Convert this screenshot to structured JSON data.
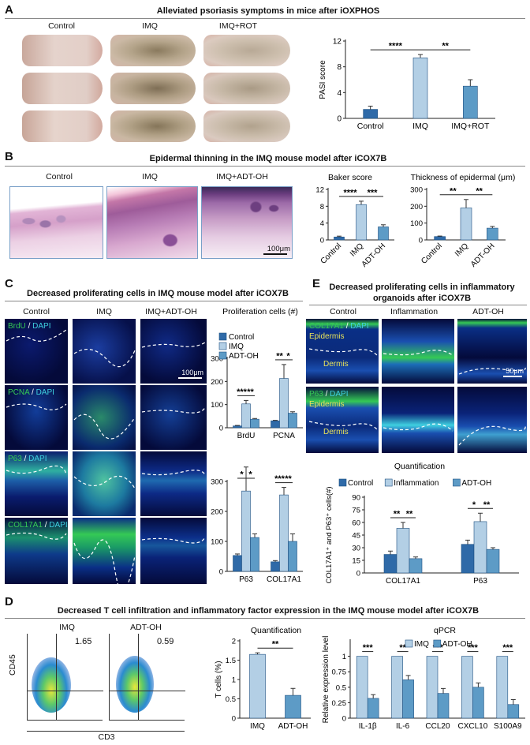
{
  "panelA": {
    "letter": "A",
    "title": "Alleviated psoriasis symptoms in mice after iOXPHOS",
    "groups": [
      "Control",
      "IMQ",
      "IMQ+ROT"
    ]
  },
  "panelB": {
    "letter": "B",
    "title": "Epidermal thinning in the IMQ mouse model after iCOX7B",
    "groups": [
      "Control",
      "IMQ",
      "IMQ+ADT-OH"
    ],
    "scale_bar": "100μm"
  },
  "panelC": {
    "letter": "C",
    "title": "Decreased proliferating cells in IMQ mouse model after iCOX7B",
    "groups": [
      "Control",
      "IMQ",
      "IMQ+ADT-OH"
    ],
    "stain_rows": [
      {
        "marker": "BrdU",
        "sep": " / ",
        "dapi": "DAPI"
      },
      {
        "marker": "PCNA",
        "sep": " / ",
        "dapi": "DAPI"
      },
      {
        "marker": "P63",
        "sep": " / ",
        "dapi": "DAPI"
      },
      {
        "marker": "COL17A1",
        "sep": " / ",
        "dapi": "DAPI"
      }
    ],
    "scale_bar": "100μm"
  },
  "panelD": {
    "letter": "D",
    "title": "Decreased T cell infiltration and inflammatory factor expression in the IMQ mouse model after iCOX7B",
    "flow_groups": [
      "IMQ",
      "ADT-OH"
    ],
    "flow_values": [
      "1.65",
      "0.59"
    ],
    "flow_ylabel": "CD45",
    "flow_xlabel": "CD3"
  },
  "panelE": {
    "letter": "E",
    "title_line1": "Decreased proliferating cells in inflammatory",
    "title_line2": "organoids after iCOX7B",
    "groups": [
      "Control",
      "Inflammation",
      "ADT-OH"
    ],
    "stain_rows": [
      {
        "marker": "COL17A1",
        "sep": " / ",
        "dapi": "DAPI"
      },
      {
        "marker": "P63",
        "sep": " / ",
        "dapi": "DAPI"
      }
    ],
    "epidermis": "Epidermis",
    "dermis": "Dermis",
    "scale_bar": "50μm"
  },
  "colors": {
    "dark": "#2f6aa8",
    "light": "#b3cfe5",
    "mid": "#5d9bc6",
    "green": "#35c955",
    "cyan": "#3fd0e0"
  },
  "chart_data": [
    {
      "id": "pasi",
      "type": "bar",
      "categories": [
        "Control",
        "IMQ",
        "IMQ+ROT"
      ],
      "values": [
        1.4,
        9.4,
        5.0
      ],
      "errors": [
        0.5,
        0.5,
        1.0
      ],
      "ylabel": "PASI score",
      "ylim": [
        0,
        12
      ],
      "yticks": [
        0,
        4,
        8,
        12
      ],
      "colors": [
        "#2f6aa8",
        "#b3cfe5",
        "#5d9bc6"
      ],
      "significance": [
        {
          "from": 0,
          "to": 1,
          "label": "****"
        },
        {
          "from": 1,
          "to": 2,
          "label": "**"
        }
      ]
    },
    {
      "id": "baker",
      "type": "bar",
      "title": "Baker score",
      "categories": [
        "Control",
        "IMQ",
        "ADT-OH"
      ],
      "values": [
        0.7,
        8.4,
        3.1
      ],
      "errors": [
        0.2,
        0.8,
        0.5
      ],
      "ylim": [
        0,
        12
      ],
      "yticks": [
        0,
        4,
        8,
        12
      ],
      "colors": [
        "#2f6aa8",
        "#b3cfe5",
        "#5d9bc6"
      ],
      "significance": [
        {
          "from": 0,
          "to": 1,
          "label": "****"
        },
        {
          "from": 1,
          "to": 2,
          "label": "***"
        }
      ]
    },
    {
      "id": "thickness",
      "type": "bar",
      "title": "Thickness of epidermal (μm)",
      "categories": [
        "Control",
        "IMQ",
        "ADT-OH"
      ],
      "values": [
        20,
        190,
        70
      ],
      "errors": [
        3,
        50,
        10
      ],
      "ylim": [
        0,
        300
      ],
      "yticks": [
        0,
        100,
        200,
        300
      ],
      "colors": [
        "#2f6aa8",
        "#b3cfe5",
        "#5d9bc6"
      ],
      "significance": [
        {
          "from": 0,
          "to": 1,
          "label": "**"
        },
        {
          "from": 1,
          "to": 2,
          "label": "**"
        }
      ]
    },
    {
      "id": "prolif",
      "type": "bar",
      "title": "Proliferation cells (#)",
      "categories": [
        "BrdU",
        "PCNA"
      ],
      "series": [
        {
          "name": "Control",
          "values": [
            8,
            30
          ],
          "errors": [
            2,
            2
          ]
        },
        {
          "name": "IMQ",
          "values": [
            103,
            213
          ],
          "errors": [
            15,
            60
          ]
        },
        {
          "name": "ADT-OH",
          "values": [
            37,
            63
          ],
          "errors": [
            3,
            6
          ]
        }
      ],
      "ylim": [
        0,
        300
      ],
      "yticks": [
        0,
        100,
        200,
        300
      ],
      "colors": [
        "#2f6aa8",
        "#b3cfe5",
        "#5d9bc6"
      ],
      "significance": [
        {
          "cat": 0,
          "from": 0,
          "to": 1,
          "label": "***"
        },
        {
          "cat": 0,
          "from": 1,
          "to": 2,
          "label": "**"
        },
        {
          "cat": 1,
          "from": 0,
          "to": 1,
          "label": "**"
        },
        {
          "cat": 1,
          "from": 1,
          "to": 2,
          "label": "*"
        }
      ]
    },
    {
      "id": "p63col",
      "type": "bar",
      "categories": [
        "P63",
        "COL17A1"
      ],
      "series": [
        {
          "name": "Control",
          "values": [
            53,
            32
          ],
          "errors": [
            5,
            4
          ]
        },
        {
          "name": "IMQ",
          "values": [
            268,
            255
          ],
          "errors": [
            80,
            25
          ]
        },
        {
          "name": "ADT-OH",
          "values": [
            113,
            100
          ],
          "errors": [
            12,
            25
          ]
        }
      ],
      "ylim": [
        0,
        300
      ],
      "yticks": [
        0,
        100,
        200,
        300
      ],
      "colors": [
        "#2f6aa8",
        "#b3cfe5",
        "#5d9bc6"
      ],
      "significance": [
        {
          "cat": 0,
          "from": 0,
          "to": 1,
          "label": "*"
        },
        {
          "cat": 0,
          "from": 1,
          "to": 2,
          "label": "*"
        },
        {
          "cat": 1,
          "from": 0,
          "to": 1,
          "label": "***"
        },
        {
          "cat": 1,
          "from": 1,
          "to": 2,
          "label": "**"
        }
      ]
    },
    {
      "id": "tcells",
      "type": "bar",
      "title": "Quantification",
      "categories": [
        "IMQ",
        "ADT-OH"
      ],
      "values": [
        1.65,
        0.59
      ],
      "errors": [
        0.04,
        0.18
      ],
      "ylabel": "T cells (%)",
      "ylim": [
        0,
        2
      ],
      "yticks": [
        0,
        0.5,
        1,
        1.5,
        2
      ],
      "ytick_labels": [
        "0",
        "0.5",
        "1",
        "1.5",
        "2"
      ],
      "colors": [
        "#b3cfe5",
        "#5d9bc6"
      ],
      "significance": [
        {
          "from": 0,
          "to": 1,
          "label": "**"
        }
      ]
    },
    {
      "id": "qpcr",
      "type": "bar",
      "title": "qPCR",
      "categories": [
        "IL-1β",
        "IL-6",
        "CCL20",
        "CXCL10",
        "S100A9"
      ],
      "series": [
        {
          "name": "IMQ",
          "values": [
            1,
            1,
            1,
            1,
            1
          ],
          "errors": [
            0,
            0,
            0,
            0,
            0
          ]
        },
        {
          "name": "ADT-OH",
          "values": [
            0.32,
            0.62,
            0.4,
            0.5,
            0.22
          ],
          "errors": [
            0.06,
            0.07,
            0.08,
            0.07,
            0.08
          ]
        }
      ],
      "ylabel": "Relative expression level",
      "ylim": [
        0,
        1.25
      ],
      "yticks": [
        0,
        0.25,
        0.5,
        0.75,
        1
      ],
      "ytick_labels": [
        "0",
        "0.25",
        "0.5",
        "0.75",
        "1"
      ],
      "colors": [
        "#b3cfe5",
        "#5d9bc6"
      ],
      "significance": [
        {
          "cat": 0,
          "from": 0,
          "to": 1,
          "label": "***"
        },
        {
          "cat": 1,
          "from": 0,
          "to": 1,
          "label": "**"
        },
        {
          "cat": 2,
          "from": 0,
          "to": 1,
          "label": "***"
        },
        {
          "cat": 3,
          "from": 0,
          "to": 1,
          "label": "***"
        },
        {
          "cat": 4,
          "from": 0,
          "to": 1,
          "label": "***"
        }
      ]
    },
    {
      "id": "organoid",
      "type": "bar",
      "title": "Quantification",
      "categories": [
        "COL17A1",
        "P63"
      ],
      "series": [
        {
          "name": "Control",
          "values": [
            22,
            34
          ],
          "errors": [
            4,
            5
          ]
        },
        {
          "name": "Inflammation",
          "values": [
            53,
            61
          ],
          "errors": [
            7,
            10
          ]
        },
        {
          "name": "ADT-OH",
          "values": [
            17,
            28
          ],
          "errors": [
            2,
            2
          ]
        }
      ],
      "ylabel": "COL17A1⁺ and P63⁺ cells(#)",
      "ylim": [
        0,
        90
      ],
      "yticks": [
        0,
        15,
        30,
        45,
        60,
        75,
        90
      ],
      "colors": [
        "#2f6aa8",
        "#b3cfe5",
        "#5d9bc6"
      ],
      "significance": [
        {
          "cat": 0,
          "from": 0,
          "to": 1,
          "label": "**"
        },
        {
          "cat": 0,
          "from": 1,
          "to": 2,
          "label": "**"
        },
        {
          "cat": 1,
          "from": 0,
          "to": 1,
          "label": "*"
        },
        {
          "cat": 1,
          "from": 1,
          "to": 2,
          "label": "**"
        }
      ]
    }
  ]
}
